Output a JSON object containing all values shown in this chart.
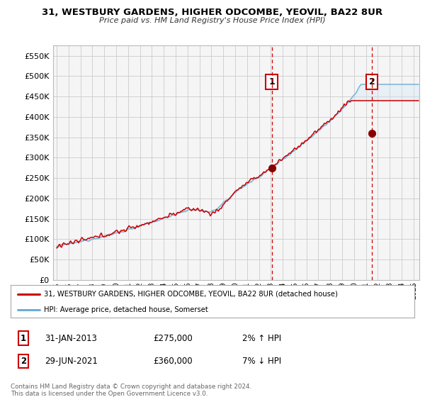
{
  "title": "31, WESTBURY GARDENS, HIGHER ODCOMBE, YEOVIL, BA22 8UR",
  "subtitle": "Price paid vs. HM Land Registry's House Price Index (HPI)",
  "legend_line1": "31, WESTBURY GARDENS, HIGHER ODCOMBE, YEOVIL, BA22 8UR (detached house)",
  "legend_line2": "HPI: Average price, detached house, Somerset",
  "annotation1_label": "1",
  "annotation1_date": "31-JAN-2013",
  "annotation1_price": "£275,000",
  "annotation1_hpi": "2% ↑ HPI",
  "annotation2_label": "2",
  "annotation2_date": "29-JUN-2021",
  "annotation2_price": "£360,000",
  "annotation2_hpi": "7% ↓ HPI",
  "copyright": "Contains HM Land Registry data © Crown copyright and database right 2024.\nThis data is licensed under the Open Government Licence v3.0.",
  "background_color": "#ffffff",
  "plot_bg_color": "#f5f5f5",
  "fill_color": "#d0e4f5",
  "grid_color": "#cccccc",
  "red_line_color": "#cc0000",
  "blue_line_color": "#6eadd4",
  "annotation_marker_color": "#880000",
  "vline_color": "#cc0000",
  "ylim": [
    0,
    575000
  ],
  "yticks": [
    0,
    50000,
    100000,
    150000,
    200000,
    250000,
    300000,
    350000,
    400000,
    450000,
    500000,
    550000
  ],
  "sale1_x": 2013.08,
  "sale1_y": 275000,
  "sale2_x": 2021.5,
  "sale2_y": 360000,
  "xmin": 1994.7,
  "xmax": 2025.5
}
